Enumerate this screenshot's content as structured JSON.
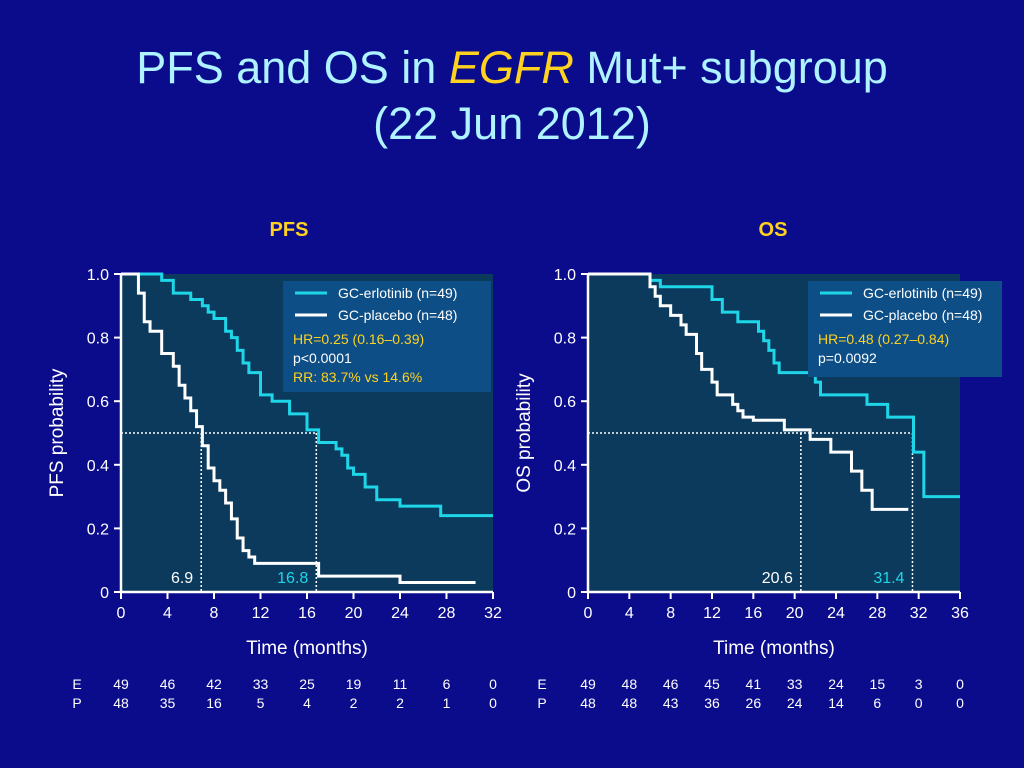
{
  "slide": {
    "title_pre": "PFS and OS in ",
    "title_em": "EGFR",
    "title_post": " Mut+ subgroup",
    "subtitle": "(22 Jun 2012)"
  },
  "colors": {
    "background": "#0b0c8c",
    "plot_bg": "#0b3a5c",
    "title_text": "#aef3ff",
    "heading": "#ffd21f",
    "erlotinib": "#1ed6e8",
    "placebo": "#ffffff",
    "stats_highlight": "#ffd21f"
  },
  "chart_data": [
    {
      "type": "line",
      "panel": "pfs",
      "title": "PFS",
      "xlabel": "Time (months)",
      "ylabel": "PFS probability",
      "xlim": [
        0,
        32
      ],
      "ylim": [
        0,
        1
      ],
      "xticks": [
        0,
        4,
        8,
        12,
        16,
        20,
        24,
        28,
        32
      ],
      "yticks": [
        0,
        0.2,
        0.4,
        0.6,
        0.8,
        1.0
      ],
      "ytick_labels": [
        "0",
        "0.2",
        "0.4",
        "0.6",
        "0.8",
        "1.0"
      ],
      "series": [
        {
          "name": "GC-erlotinib (n=49)",
          "color": "#1ed6e8",
          "x": [
            0,
            3.5,
            4.5,
            6.0,
            7.0,
            7.5,
            8.0,
            9.0,
            9.5,
            10.0,
            10.5,
            11.0,
            12.0,
            13.0,
            14.5,
            16.0,
            17.0,
            18.5,
            19.0,
            19.5,
            20.0,
            21.0,
            22.0,
            24.0,
            27.5,
            32.0
          ],
          "y": [
            1.0,
            0.98,
            0.94,
            0.92,
            0.9,
            0.88,
            0.86,
            0.82,
            0.8,
            0.76,
            0.72,
            0.69,
            0.62,
            0.6,
            0.56,
            0.51,
            0.47,
            0.45,
            0.43,
            0.39,
            0.37,
            0.33,
            0.29,
            0.27,
            0.24,
            0.24
          ]
        },
        {
          "name": "GC-placebo (n=48)",
          "color": "#ffffff",
          "x": [
            0,
            1.5,
            2.0,
            2.5,
            3.5,
            4.5,
            5.0,
            5.5,
            6.0,
            6.5,
            7.0,
            7.5,
            8.0,
            8.5,
            9.0,
            9.5,
            10.0,
            10.5,
            11.0,
            11.5,
            14.5,
            17.0,
            24.0,
            30.5
          ],
          "y": [
            1.0,
            0.94,
            0.85,
            0.82,
            0.75,
            0.71,
            0.65,
            0.61,
            0.57,
            0.52,
            0.46,
            0.39,
            0.35,
            0.32,
            0.28,
            0.23,
            0.17,
            0.13,
            0.11,
            0.09,
            0.09,
            0.05,
            0.03,
            0.03
          ]
        }
      ],
      "legend": [
        "GC-erlotinib (n=49)",
        "GC-placebo (n=48)"
      ],
      "legend_position": "top-right",
      "stats": [
        {
          "text": "HR=0.25 (0.16–0.39)",
          "highlight": true
        },
        {
          "text": "p<0.0001",
          "highlight": false
        },
        {
          "text": "RR: 83.7% vs 14.6%",
          "highlight": true
        }
      ],
      "median_y": 0.5,
      "medians": [
        {
          "value": 6.9,
          "label": "6.9",
          "series": 1
        },
        {
          "value": 16.8,
          "label": "16.8",
          "series": 0
        }
      ],
      "risk_table": {
        "row_labels": [
          "E",
          "P"
        ],
        "times": [
          0,
          4,
          8,
          12,
          16,
          20,
          24,
          28,
          32
        ],
        "rows": [
          [
            "49",
            "46",
            "42",
            "33",
            "25",
            "19",
            "11",
            "6",
            "0"
          ],
          [
            "48",
            "35",
            "16",
            "5",
            "4",
            "2",
            "2",
            "1",
            "0"
          ]
        ]
      }
    },
    {
      "type": "line",
      "panel": "os",
      "title": "OS",
      "xlabel": "Time (months)",
      "ylabel": "OS probability",
      "xlim": [
        0,
        36
      ],
      "ylim": [
        0,
        1
      ],
      "xticks": [
        0,
        4,
        8,
        12,
        16,
        20,
        24,
        28,
        32,
        36
      ],
      "yticks": [
        0,
        0.2,
        0.4,
        0.6,
        0.8,
        1.0
      ],
      "ytick_labels": [
        "0",
        "0.2",
        "0.4",
        "0.6",
        "0.8",
        "1.0"
      ],
      "series": [
        {
          "name": "GC-erlotinib (n=49)",
          "color": "#1ed6e8",
          "x": [
            0,
            6.0,
            7.0,
            12.0,
            13.0,
            14.5,
            16.5,
            17.0,
            17.5,
            18.0,
            18.5,
            22.0,
            22.5,
            24.0,
            26.5,
            27.0,
            29.0,
            31.5,
            32.5,
            36.0
          ],
          "y": [
            1.0,
            0.98,
            0.96,
            0.92,
            0.88,
            0.85,
            0.82,
            0.79,
            0.76,
            0.72,
            0.69,
            0.66,
            0.62,
            0.62,
            0.62,
            0.59,
            0.55,
            0.44,
            0.3,
            0.3
          ]
        },
        {
          "name": "GC-placebo (n=48)",
          "color": "#ffffff",
          "x": [
            0,
            6.0,
            6.5,
            7.0,
            8.0,
            9.0,
            9.5,
            10.5,
            11.0,
            12.0,
            12.5,
            14.0,
            14.5,
            15.0,
            16.0,
            19.0,
            21.5,
            23.5,
            25.5,
            26.5,
            27.5,
            31.0
          ],
          "y": [
            1.0,
            0.96,
            0.93,
            0.9,
            0.87,
            0.84,
            0.81,
            0.75,
            0.7,
            0.66,
            0.62,
            0.59,
            0.57,
            0.55,
            0.54,
            0.51,
            0.48,
            0.44,
            0.38,
            0.32,
            0.26,
            0.26
          ]
        }
      ],
      "legend": [
        "GC-erlotinib (n=49)",
        "GC-placebo (n=48)"
      ],
      "legend_position": "top-right",
      "stats": [
        {
          "text": "HR=0.48 (0.27–0.84)",
          "highlight": true
        },
        {
          "text": "p=0.0092",
          "highlight": false
        }
      ],
      "median_y": 0.5,
      "medians": [
        {
          "value": 20.6,
          "label": "20.6",
          "series": 1
        },
        {
          "value": 31.4,
          "label": "31.4",
          "series": 0
        }
      ],
      "risk_table": {
        "row_labels": [
          "E",
          "P"
        ],
        "times": [
          0,
          4,
          8,
          12,
          16,
          20,
          24,
          28,
          32,
          36
        ],
        "rows": [
          [
            "49",
            "48",
            "46",
            "45",
            "41",
            "33",
            "24",
            "15",
            "3",
            "0"
          ],
          [
            "48",
            "48",
            "43",
            "36",
            "26",
            "24",
            "14",
            "6",
            "0",
            "0"
          ]
        ]
      }
    }
  ]
}
